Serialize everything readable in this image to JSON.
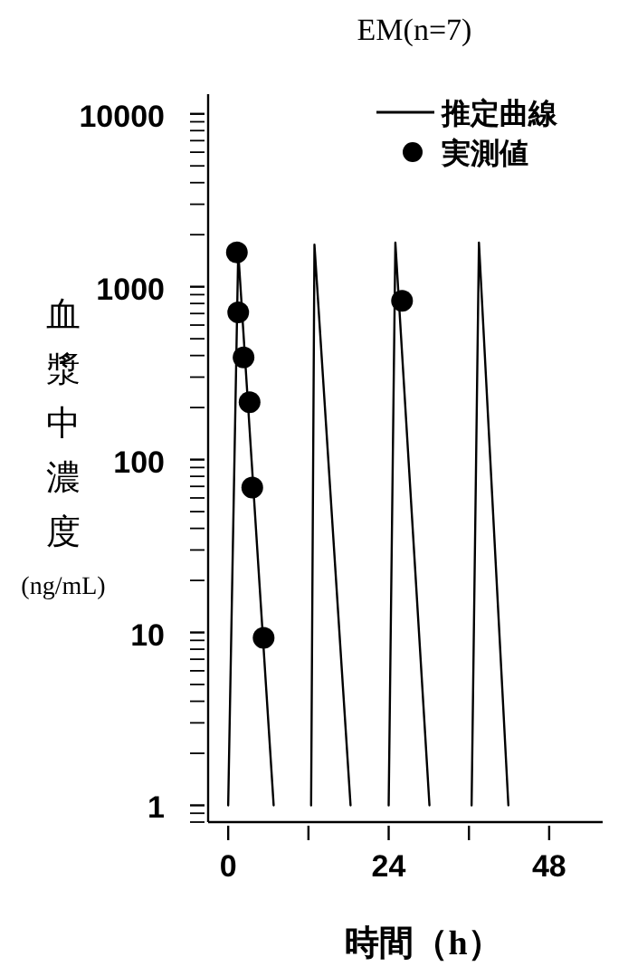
{
  "chart_data": {
    "type": "line",
    "title": "EM(n=7)",
    "xlabel": "時間（h）",
    "ylabel": "血漿中濃度(ng/mL)",
    "log": "y",
    "xlim": [
      -3,
      56
    ],
    "xticks": [
      0,
      {
        "value": 12,
        "label": null
      },
      24,
      {
        "value": 36,
        "label": null
      },
      48
    ],
    "ylim": [
      0.8,
      13000
    ],
    "yticks": [
      1,
      10,
      100,
      1000,
      10000
    ],
    "legend": "top right",
    "series": [
      {
        "name": "推定曲線",
        "color": "#000000",
        "marker": "none",
        "x": [
          0,
          1.5,
          6.8,
          null,
          12.4,
          12.9,
          18.3,
          null,
          24.0,
          25.0,
          30.1,
          null,
          36.4,
          37.5,
          41.9
        ],
        "values": [
          1,
          1600,
          1,
          null,
          1,
          1750,
          1,
          null,
          1,
          1800,
          1,
          null,
          1,
          1800,
          1
        ]
      },
      {
        "name": "実測値",
        "type": "scatter",
        "color": "#000000",
        "marker": "circle",
        "x": [
          1.3,
          1.5,
          2.3,
          3.2,
          3.6,
          5.3,
          26.0
        ],
        "values": [
          1580,
          710,
          390,
          215,
          69,
          9.3,
          830
        ]
      }
    ]
  }
}
